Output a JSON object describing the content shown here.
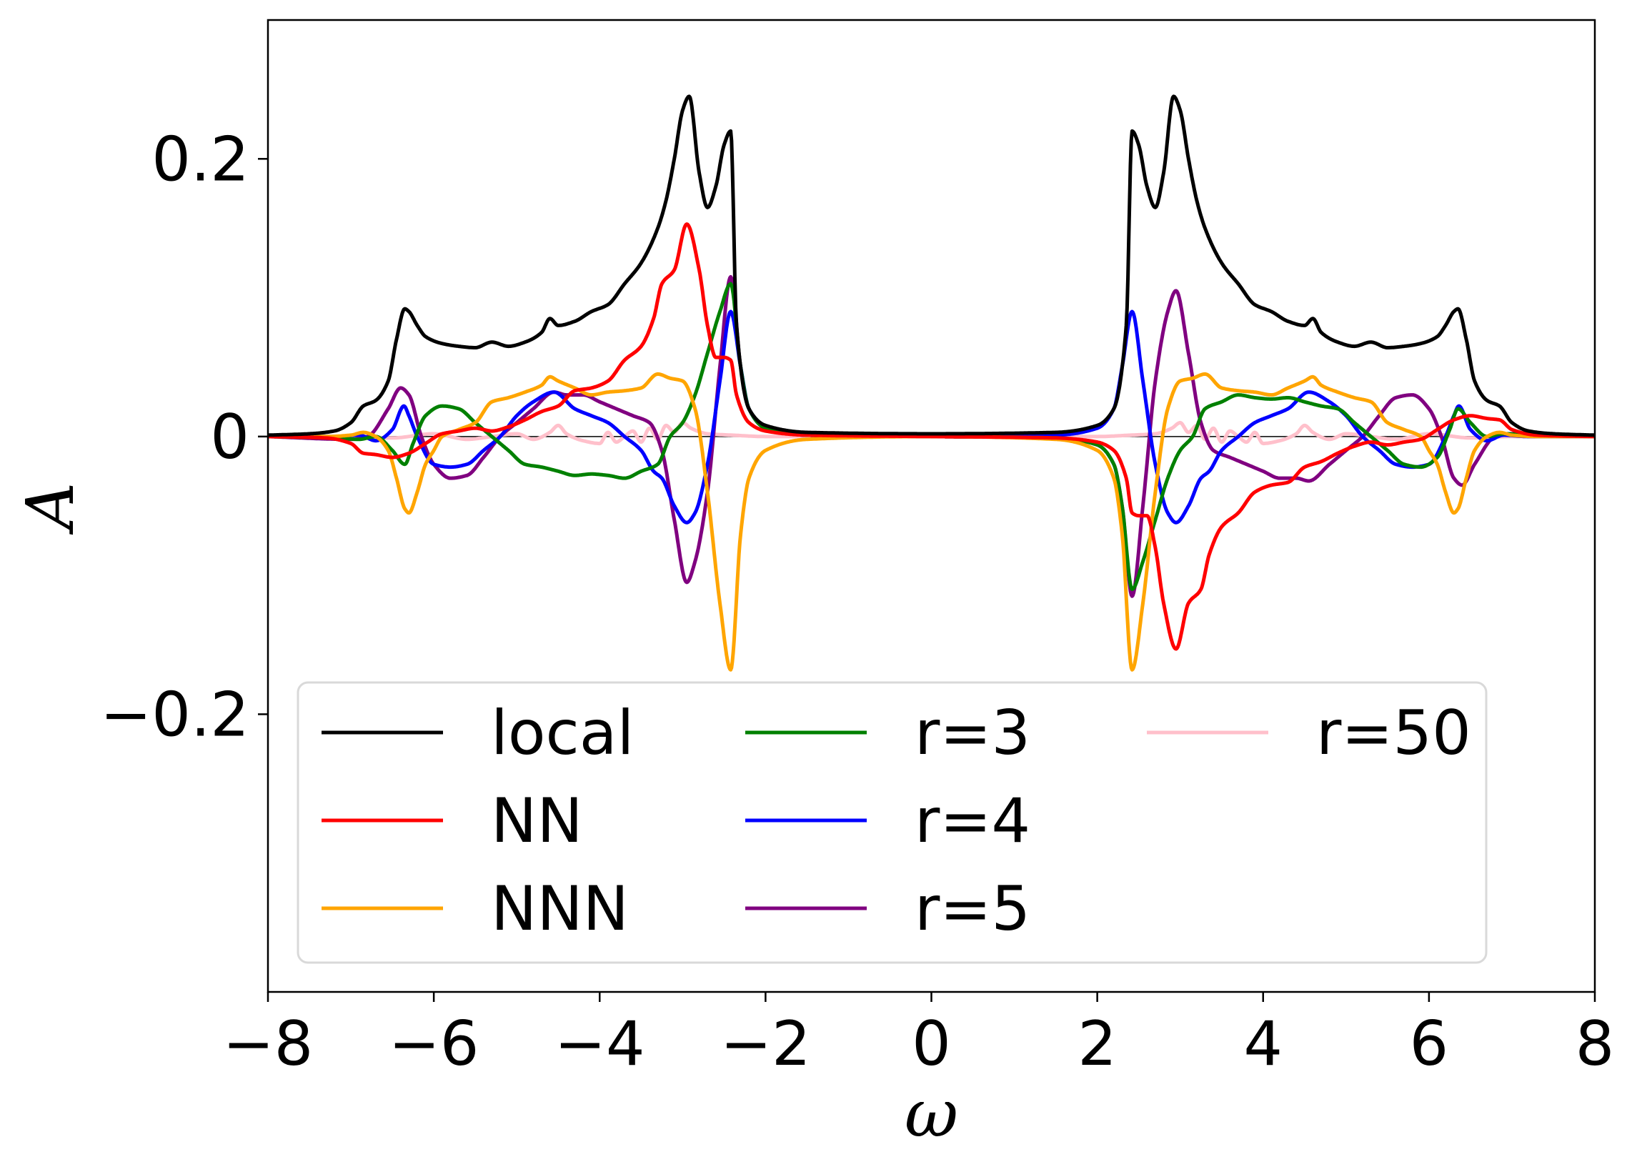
{
  "chart_data": {
    "type": "line",
    "xlabel": "ω",
    "ylabel": "A",
    "xlim": [
      -8,
      8
    ],
    "ylim": [
      -0.4,
      0.3
    ],
    "x_ticks": [
      -8,
      -6,
      -4,
      -2,
      0,
      2,
      4,
      6,
      8
    ],
    "x_tick_labels": [
      "−8",
      "−6",
      "−4",
      "−2",
      "0",
      "2",
      "4",
      "6",
      "8"
    ],
    "y_ticks": [
      -0.2,
      0,
      0.2
    ],
    "y_tick_labels": [
      "−0.2",
      "0",
      "0.2"
    ],
    "grid": false,
    "legend_position": "lower-center",
    "legend_columns": 3,
    "series": [
      {
        "name": "local",
        "color": "#000000",
        "symmetry": "even",
        "x": [
          0,
          1.5,
          2.0,
          2.2,
          2.35,
          2.42,
          2.5,
          2.6,
          2.7,
          2.8,
          2.92,
          3.0,
          3.1,
          3.2,
          3.3,
          3.5,
          3.7,
          3.9,
          4.1,
          4.3,
          4.5,
          4.6,
          4.7,
          4.9,
          5.1,
          5.3,
          5.5,
          5.7,
          5.9,
          6.1,
          6.2,
          6.3,
          6.35,
          6.45,
          6.55,
          6.7,
          6.85,
          7.0,
          7.2,
          7.5,
          8.0
        ],
        "y": [
          0.002,
          0.003,
          0.008,
          0.02,
          0.08,
          0.22,
          0.21,
          0.18,
          0.165,
          0.19,
          0.245,
          0.235,
          0.2,
          0.17,
          0.15,
          0.125,
          0.11,
          0.095,
          0.09,
          0.083,
          0.08,
          0.085,
          0.075,
          0.068,
          0.065,
          0.068,
          0.064,
          0.065,
          0.067,
          0.072,
          0.08,
          0.09,
          0.092,
          0.07,
          0.04,
          0.026,
          0.022,
          0.01,
          0.004,
          0.002,
          0.001
        ]
      },
      {
        "name": "NN",
        "color": "#ff0000",
        "symmetry": "odd",
        "x": [
          0,
          1.5,
          2.0,
          2.2,
          2.35,
          2.42,
          2.5,
          2.6,
          2.7,
          2.8,
          2.95,
          3.1,
          3.25,
          3.35,
          3.5,
          3.7,
          3.9,
          4.1,
          4.3,
          4.5,
          4.7,
          4.9,
          5.1,
          5.3,
          5.5,
          5.7,
          5.9,
          6.1,
          6.3,
          6.5,
          6.7,
          6.85,
          7.0,
          7.3,
          8.0
        ],
        "y": [
          0,
          -0.001,
          -0.004,
          -0.01,
          -0.03,
          -0.055,
          -0.057,
          -0.057,
          -0.08,
          -0.12,
          -0.153,
          -0.12,
          -0.11,
          -0.085,
          -0.065,
          -0.055,
          -0.04,
          -0.035,
          -0.033,
          -0.022,
          -0.018,
          -0.012,
          -0.007,
          -0.004,
          -0.006,
          -0.004,
          -0.002,
          0.005,
          0.012,
          0.015,
          0.013,
          0.012,
          0.005,
          0.001,
          0
        ]
      },
      {
        "name": "NNN",
        "color": "#ffa500",
        "symmetry": "even",
        "x": [
          0,
          1.5,
          2.0,
          2.2,
          2.3,
          2.42,
          2.55,
          2.7,
          2.85,
          3.0,
          3.15,
          3.3,
          3.5,
          3.7,
          3.9,
          4.1,
          4.3,
          4.5,
          4.6,
          4.7,
          4.9,
          5.1,
          5.3,
          5.5,
          5.7,
          5.9,
          6.0,
          6.1,
          6.2,
          6.3,
          6.35,
          6.45,
          6.55,
          6.7,
          6.85,
          7.0,
          7.3,
          8.0
        ],
        "y": [
          0,
          -0.002,
          -0.01,
          -0.03,
          -0.07,
          -0.168,
          -0.12,
          -0.04,
          0.02,
          0.04,
          0.042,
          0.045,
          0.035,
          0.033,
          0.032,
          0.03,
          0.035,
          0.04,
          0.043,
          0.037,
          0.032,
          0.028,
          0.025,
          0.01,
          0.005,
          0.0,
          -0.01,
          -0.02,
          -0.04,
          -0.055,
          -0.052,
          -0.03,
          -0.01,
          0.0,
          0.003,
          0.001,
          0.0,
          0
        ]
      },
      {
        "name": "r=3",
        "color": "#008000",
        "symmetry": "odd",
        "x": [
          0,
          1.5,
          2.0,
          2.2,
          2.3,
          2.42,
          2.55,
          2.7,
          2.85,
          3.0,
          3.15,
          3.3,
          3.5,
          3.7,
          3.9,
          4.1,
          4.3,
          4.5,
          4.7,
          4.9,
          5.1,
          5.3,
          5.5,
          5.7,
          5.9,
          6.1,
          6.25,
          6.35,
          6.5,
          6.7,
          6.9,
          7.2,
          8.0
        ],
        "y": [
          0,
          -0.001,
          -0.006,
          -0.02,
          -0.05,
          -0.11,
          -0.09,
          -0.06,
          -0.03,
          -0.01,
          0.0,
          0.02,
          0.025,
          0.03,
          0.028,
          0.027,
          0.028,
          0.025,
          0.022,
          0.02,
          0.01,
          0.0,
          -0.01,
          -0.02,
          -0.022,
          -0.015,
          0.005,
          0.02,
          0.01,
          0.0,
          0.002,
          0.001,
          0
        ]
      },
      {
        "name": "r=4",
        "color": "#0000ff",
        "symmetry": "even",
        "x": [
          0,
          1.5,
          2.0,
          2.2,
          2.3,
          2.42,
          2.55,
          2.7,
          2.85,
          2.95,
          3.1,
          3.25,
          3.35,
          3.5,
          3.7,
          3.9,
          4.1,
          4.3,
          4.55,
          4.8,
          5.0,
          5.2,
          5.4,
          5.6,
          5.8,
          6.0,
          6.2,
          6.3,
          6.36,
          6.5,
          6.7,
          6.9,
          7.2,
          8.0
        ],
        "y": [
          0,
          0.001,
          0.006,
          0.02,
          0.05,
          0.09,
          0.04,
          -0.02,
          -0.055,
          -0.062,
          -0.05,
          -0.03,
          -0.025,
          -0.01,
          0.0,
          0.01,
          0.015,
          0.02,
          0.032,
          0.025,
          0.015,
          0.0,
          -0.01,
          -0.02,
          -0.022,
          -0.02,
          0.0,
          0.015,
          0.022,
          0.005,
          -0.003,
          0.001,
          0.0,
          0
        ]
      },
      {
        "name": "r=5",
        "color": "#800080",
        "symmetry": "odd",
        "x": [
          0,
          1.5,
          2.0,
          2.2,
          2.3,
          2.42,
          2.55,
          2.7,
          2.85,
          2.95,
          3.1,
          3.25,
          3.4,
          3.6,
          3.8,
          4.0,
          4.2,
          4.4,
          4.55,
          4.8,
          5.0,
          5.2,
          5.4,
          5.6,
          5.8,
          6.0,
          6.15,
          6.3,
          6.4,
          6.55,
          6.8,
          7.0,
          8.0
        ],
        "y": [
          0,
          -0.001,
          -0.006,
          -0.02,
          -0.05,
          -0.115,
          -0.05,
          0.04,
          0.09,
          0.105,
          0.06,
          0.01,
          -0.01,
          -0.015,
          -0.02,
          -0.025,
          -0.03,
          -0.03,
          -0.032,
          -0.02,
          -0.01,
          0.0,
          0.015,
          0.028,
          0.03,
          0.02,
          0.0,
          -0.03,
          -0.035,
          -0.02,
          0.0,
          0.002,
          0
        ]
      },
      {
        "name": "r=50",
        "color": "#ffc0cb",
        "symmetry": "even",
        "x": [
          0,
          1.5,
          2.0,
          2.4,
          2.7,
          2.9,
          3.0,
          3.1,
          3.2,
          3.3,
          3.4,
          3.5,
          3.6,
          3.7,
          3.8,
          3.9,
          4.0,
          4.2,
          4.4,
          4.5,
          4.6,
          4.8,
          5.0,
          5.3,
          5.6,
          6.0,
          6.5,
          7.0,
          8.0
        ],
        "y": [
          0,
          0,
          0,
          0.001,
          0.002,
          0.006,
          0.01,
          0.003,
          0.008,
          -0.002,
          0.006,
          -0.004,
          0.004,
          0.0,
          -0.004,
          0.003,
          -0.005,
          -0.003,
          0.002,
          0.008,
          0.003,
          -0.002,
          0.002,
          0.0,
          -0.002,
          0.002,
          -0.001,
          0.0,
          0
        ]
      }
    ]
  }
}
